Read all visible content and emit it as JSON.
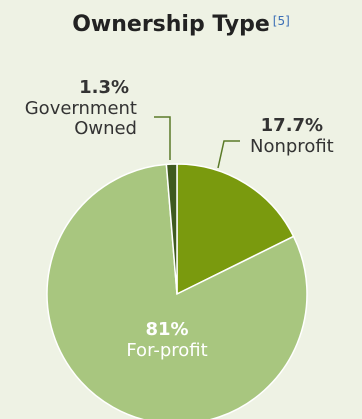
{
  "header": {
    "title": "Ownership Type",
    "ref": "[5]"
  },
  "colors": {
    "background": "#eef2e4",
    "for_profit": "#a8c67f",
    "nonprofit": "#7a9a0e",
    "government": "#3f5a1f",
    "leader": "#5a7a28"
  },
  "chart_data": {
    "type": "pie",
    "title": "Ownership Type",
    "slices": [
      {
        "label": "Nonprofit",
        "value": 17.7,
        "display": "17.7%",
        "color": "#7a9a0e"
      },
      {
        "label": "For-profit",
        "value": 81,
        "display": "81%",
        "color": "#a8c67f"
      },
      {
        "label": "Government Owned",
        "value": 1.3,
        "display": "1.3%",
        "color": "#3f5a1f"
      }
    ]
  }
}
